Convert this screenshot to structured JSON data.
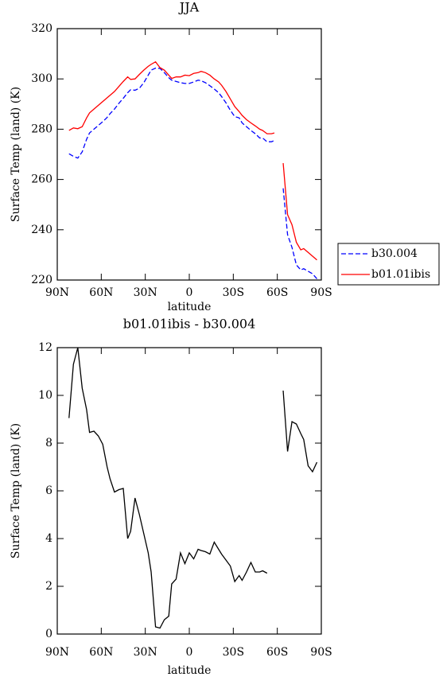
{
  "chart_data": [
    {
      "type": "line",
      "title": "JJA",
      "xlabel": "latitude",
      "ylabel": "Surface Temp (land) (K)",
      "x": [
        82,
        79,
        76,
        73,
        70,
        68,
        65,
        62,
        59,
        56,
        54,
        51,
        48,
        45,
        42,
        40,
        37,
        34,
        31,
        28,
        26,
        23,
        20,
        17,
        14,
        12,
        9,
        6,
        3,
        0,
        -3,
        -6,
        -8,
        -11,
        -14,
        -17,
        -20,
        -22,
        -25,
        -28,
        -31,
        -34,
        -36,
        -39,
        -42,
        -45,
        -48,
        -50,
        -53,
        -56,
        -58,
        -61,
        -64,
        -67,
        -70,
        -73,
        -76,
        -78,
        -81,
        -84,
        -87
      ],
      "xlim": [
        90,
        -90
      ],
      "xticks": [
        {
          "value": 90,
          "label": "90N"
        },
        {
          "value": 60,
          "label": "60N"
        },
        {
          "value": 30,
          "label": "30N"
        },
        0,
        {
          "value": -30,
          "label": "30S"
        },
        {
          "value": -60,
          "label": "60S"
        },
        {
          "value": -90,
          "label": "90S"
        }
      ],
      "ylim": [
        220,
        320
      ],
      "yticks": [
        220,
        240,
        260,
        280,
        300,
        320
      ],
      "legend": "right",
      "series": [
        {
          "name": "b30.004",
          "color": "#0000ff",
          "dashed": true,
          "values": [
            270.2,
            269.2,
            268.5,
            271,
            276,
            278.5,
            280,
            281.5,
            283,
            284.7,
            286.2,
            288,
            290.3,
            292.3,
            294.5,
            295.7,
            295.5,
            296.3,
            298.5,
            301.5,
            303.5,
            304.3,
            304.2,
            302.5,
            300.5,
            299.5,
            299,
            298.5,
            298.2,
            298.2,
            298.8,
            299.5,
            299.3,
            298.5,
            297.3,
            296,
            294.5,
            293,
            290.5,
            287.5,
            285,
            284.5,
            282.5,
            281,
            279.5,
            278.2,
            276.5,
            276.5,
            275,
            275,
            275.5,
            null,
            256.5,
            238,
            233,
            226,
            224,
            224.5,
            223.5,
            222.5,
            220.5
          ]
        },
        {
          "name": "b01.01ibis",
          "color": "#ff0000",
          "dashed": false,
          "values": [
            279.5,
            280.5,
            280.2,
            281,
            284.5,
            286.5,
            288,
            289.5,
            291,
            292.5,
            293.5,
            295,
            297,
            299,
            300.8,
            299.8,
            300,
            301.8,
            303.5,
            305,
            305.8,
            306.8,
            304.5,
            303.5,
            301.5,
            300.2,
            300.8,
            300.8,
            301.5,
            301.3,
            302.2,
            302.5,
            303,
            302.5,
            301.5,
            300,
            298.8,
            297.5,
            295,
            292,
            289,
            287,
            285.5,
            283.8,
            282.5,
            281.3,
            280,
            279.5,
            278.2,
            278.2,
            278.5,
            null,
            266.5,
            246,
            242,
            235,
            232,
            232.5,
            231,
            229.5,
            228
          ]
        }
      ]
    },
    {
      "type": "line",
      "title": "b01.01ibis - b30.004",
      "xlabel": "latitude",
      "ylabel": "Surface Temp (land) (K)",
      "x": [
        82,
        79,
        76,
        73,
        70,
        68,
        65,
        62,
        59,
        56,
        54,
        51,
        48,
        45,
        42,
        40,
        37,
        34,
        31,
        28,
        26,
        23,
        20,
        17,
        14,
        12,
        9,
        6,
        3,
        0,
        -3,
        -6,
        -8,
        -11,
        -14,
        -17,
        -20,
        -22,
        -25,
        -28,
        -31,
        -34,
        -36,
        -39,
        -42,
        -45,
        -48,
        -50,
        -53,
        -56,
        -58,
        -61,
        -64,
        -67,
        -70,
        -73,
        -76,
        -78,
        -81,
        -84,
        -87
      ],
      "xlim": [
        90,
        -90
      ],
      "xticks": [
        {
          "value": 90,
          "label": "90N"
        },
        {
          "value": 60,
          "label": "60N"
        },
        {
          "value": 30,
          "label": "30N"
        },
        0,
        {
          "value": -30,
          "label": "30S"
        },
        {
          "value": -60,
          "label": "60S"
        },
        {
          "value": -90,
          "label": "90S"
        }
      ],
      "ylim": [
        0,
        12
      ],
      "yticks": [
        0,
        2,
        4,
        6,
        8,
        10,
        12
      ],
      "series": [
        {
          "color": "#000000",
          "dashed": false,
          "values": [
            9.05,
            11.3,
            12,
            10.3,
            9.4,
            8.45,
            8.5,
            8.3,
            7.95,
            7.0,
            6.5,
            5.95,
            6.05,
            6.1,
            4.0,
            4.3,
            5.7,
            5.0,
            4.2,
            3.4,
            2.6,
            0.3,
            0.25,
            0.6,
            0.75,
            2.1,
            2.3,
            3.4,
            2.95,
            3.4,
            3.15,
            3.55,
            3.5,
            3.45,
            3.35,
            3.85,
            3.55,
            3.35,
            3.1,
            2.85,
            2.2,
            2.45,
            2.25,
            2.6,
            3.0,
            2.6,
            2.6,
            2.65,
            2.55,
            null,
            null,
            null,
            10.2,
            7.65,
            8.9,
            8.8,
            8.4,
            8.15,
            7.05,
            6.8,
            7.2
          ]
        }
      ]
    }
  ]
}
